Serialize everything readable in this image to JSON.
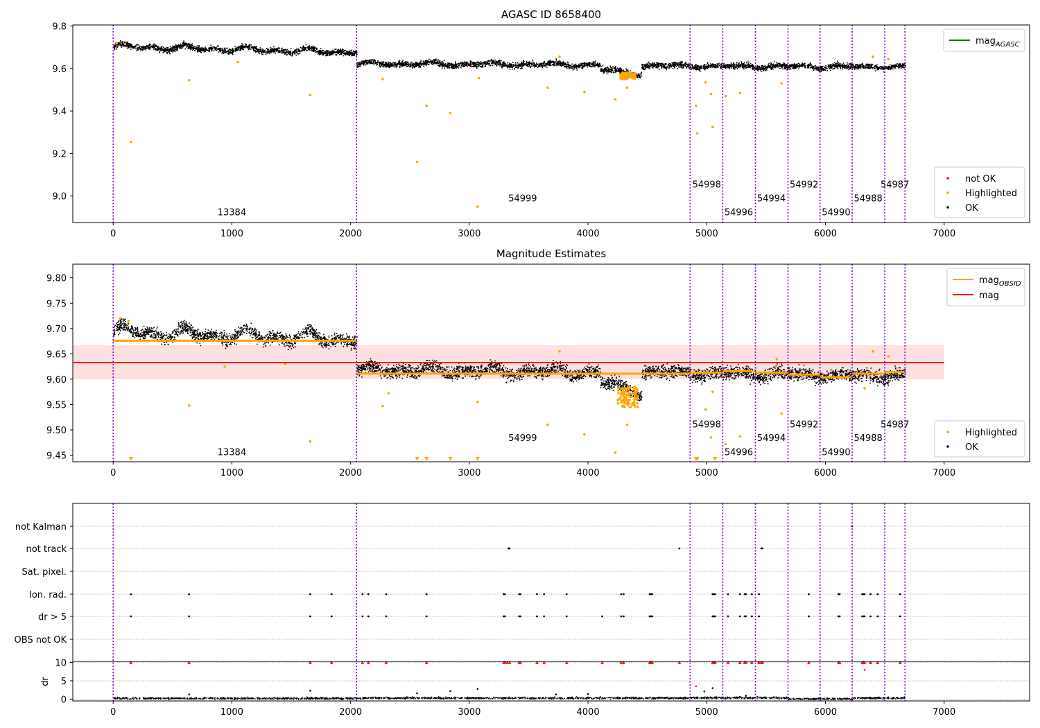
{
  "figure": {
    "background": "#ffffff"
  },
  "chart_data": [
    {
      "type": "scatter",
      "title": "AGASC ID 8658400",
      "xlabel": "",
      "ylabel": "",
      "xlim": [
        -340,
        7720
      ],
      "ylim": [
        8.875,
        9.805
      ],
      "xticks": [
        0,
        1000,
        2000,
        3000,
        4000,
        5000,
        6000,
        7000
      ],
      "yticks": [
        9.0,
        9.2,
        9.4,
        9.6,
        9.8
      ],
      "ytick_labels": [
        "9.0",
        "9.2",
        "9.4",
        "9.6",
        "9.8"
      ],
      "grid": false,
      "obs_boundaries": [
        0,
        2050,
        4860,
        5135,
        5410,
        5685,
        5955,
        6225,
        6500,
        6670
      ],
      "obsids": [
        {
          "label": "13384",
          "x": 1000,
          "y": 8.91
        },
        {
          "label": "54999",
          "x": 3450,
          "y": 8.975
        },
        {
          "label": "54998",
          "x": 5000,
          "y": 9.04
        },
        {
          "label": "54996",
          "x": 5270,
          "y": 8.91
        },
        {
          "label": "54994",
          "x": 5545,
          "y": 8.975
        },
        {
          "label": "54992",
          "x": 5820,
          "y": 9.04
        },
        {
          "label": "54990",
          "x": 6090,
          "y": 8.91
        },
        {
          "label": "54988",
          "x": 6360,
          "y": 8.975
        },
        {
          "label": "54987",
          "x": 6585,
          "y": 9.04
        }
      ],
      "ok_trend": [
        {
          "x": [
            0,
            2050
          ],
          "y": [
            9.705,
            9.68
          ],
          "wave": 0.015
        },
        {
          "x": [
            2050,
            4100
          ],
          "y": [
            9.625,
            9.62
          ],
          "wave": 0.01
        },
        {
          "x": [
            4100,
            4450
          ],
          "y": [
            9.6,
            9.575
          ],
          "wave": 0.01
        },
        {
          "x": [
            4450,
            6670
          ],
          "y": [
            9.615,
            9.61
          ],
          "wave": 0.008
        }
      ],
      "ok_scatter": 0.013,
      "highlighted": [
        [
          150,
          9.255
        ],
        [
          640,
          9.545
        ],
        [
          1660,
          9.475
        ],
        [
          2560,
          9.16
        ],
        [
          2640,
          9.425
        ],
        [
          2840,
          9.39
        ],
        [
          3070,
          8.95
        ],
        [
          3660,
          9.51
        ],
        [
          3970,
          9.49
        ],
        [
          4230,
          9.455
        ],
        [
          4330,
          9.51
        ],
        [
          4910,
          9.425
        ],
        [
          4920,
          9.295
        ],
        [
          5050,
          9.325
        ],
        [
          5160,
          9.47
        ],
        [
          5280,
          9.485
        ],
        [
          5035,
          9.48
        ],
        [
          4990,
          9.535
        ],
        [
          5630,
          9.53
        ],
        [
          6400,
          9.655
        ],
        [
          30,
          9.72
        ],
        [
          100,
          9.715
        ],
        [
          1050,
          9.63
        ],
        [
          2270,
          9.55
        ],
        [
          3080,
          9.555
        ],
        [
          3760,
          9.655
        ],
        [
          6530,
          9.645
        ]
      ],
      "highlight_cluster": {
        "x": [
          4270,
          4400
        ],
        "y": [
          9.55,
          9.58
        ]
      },
      "legend_top": [
        {
          "label": "mag",
          "sub": "AGASC",
          "color": "#008000"
        }
      ],
      "legend_bottom": [
        {
          "label": "not OK",
          "color": "#ff0000"
        },
        {
          "label": "Highlighted",
          "color": "#ffa500"
        },
        {
          "label": "OK",
          "color": "#000000"
        }
      ]
    },
    {
      "type": "scatter",
      "title": "Magnitude Estimates",
      "xlabel": "",
      "ylabel": "",
      "xlim": [
        -340,
        7720
      ],
      "ylim": [
        9.437,
        9.827
      ],
      "xticks": [
        0,
        1000,
        2000,
        3000,
        4000,
        5000,
        6000,
        7000
      ],
      "yticks": [
        9.45,
        9.5,
        9.55,
        9.6,
        9.65,
        9.7,
        9.75,
        9.8
      ],
      "ytick_labels": [
        "9.45",
        "9.50",
        "9.55",
        "9.60",
        "9.65",
        "9.70",
        "9.75",
        "9.80"
      ],
      "grid": false,
      "obs_boundaries": [
        0,
        2050,
        4860,
        5135,
        5410,
        5685,
        5955,
        6225,
        6500,
        6670
      ],
      "mag_mean": 9.633,
      "mag_band": [
        9.6,
        9.667
      ],
      "mag_band_x": [
        -340,
        7000
      ],
      "mag_obsid": [
        {
          "x": [
            0,
            2050
          ],
          "y": 9.676
        },
        {
          "x": [
            2050,
            4860
          ],
          "y": 9.611
        },
        {
          "x": [
            4860,
            5135
          ],
          "y": 9.613
        },
        {
          "x": [
            5135,
            5410
          ],
          "y": 9.616
        },
        {
          "x": [
            5410,
            5685
          ],
          "y": 9.613
        },
        {
          "x": [
            5685,
            5955
          ],
          "y": 9.609
        },
        {
          "x": [
            5955,
            6225
          ],
          "y": 9.604
        },
        {
          "x": [
            6225,
            6500
          ],
          "y": 9.611
        },
        {
          "x": [
            6500,
            6670
          ],
          "y": 9.614
        }
      ],
      "obsids": [
        {
          "label": "13384",
          "x": 1000,
          "y": 9.45
        },
        {
          "label": "54999",
          "x": 3450,
          "y": 9.478
        },
        {
          "label": "54998",
          "x": 5000,
          "y": 9.505
        },
        {
          "label": "54996",
          "x": 5270,
          "y": 9.45
        },
        {
          "label": "54994",
          "x": 5545,
          "y": 9.478
        },
        {
          "label": "54992",
          "x": 5820,
          "y": 9.505
        },
        {
          "label": "54990",
          "x": 6090,
          "y": 9.45
        },
        {
          "label": "54988",
          "x": 6360,
          "y": 9.478
        },
        {
          "label": "54987",
          "x": 6585,
          "y": 9.505
        }
      ],
      "ok_trend": [
        {
          "x": [
            0,
            2050
          ],
          "y": [
            9.695,
            9.68
          ],
          "wave": 0.014
        },
        {
          "x": [
            2050,
            4100
          ],
          "y": [
            9.62,
            9.615
          ],
          "wave": 0.009
        },
        {
          "x": [
            4100,
            4450
          ],
          "y": [
            9.595,
            9.575
          ],
          "wave": 0.008
        },
        {
          "x": [
            4450,
            6670
          ],
          "y": [
            9.615,
            9.607
          ],
          "wave": 0.007
        }
      ],
      "ok_scatter": 0.012,
      "highlighted": [
        [
          640,
          9.548
        ],
        [
          1660,
          9.477
        ],
        [
          3070,
          9.555
        ],
        [
          3660,
          9.51
        ],
        [
          3970,
          9.491
        ],
        [
          4230,
          9.455
        ],
        [
          4330,
          9.51
        ],
        [
          5035,
          9.485
        ],
        [
          4990,
          9.54
        ],
        [
          5050,
          9.575
        ],
        [
          5280,
          9.487
        ],
        [
          5160,
          9.472
        ],
        [
          5630,
          9.532
        ],
        [
          6400,
          9.655
        ],
        [
          6530,
          9.645
        ],
        [
          940,
          9.625
        ],
        [
          2270,
          9.547
        ],
        [
          2320,
          9.572
        ],
        [
          3760,
          9.655
        ],
        [
          60,
          9.72
        ],
        [
          130,
          9.715
        ],
        [
          1450,
          9.63
        ],
        [
          5590,
          9.64
        ],
        [
          6330,
          9.582
        ]
      ],
      "highlight_cluster": {
        "x": [
          4250,
          4420
        ],
        "y": [
          9.545,
          9.585
        ]
      },
      "low_markers": [
        150,
        2560,
        2640,
        2840,
        3070,
        4910,
        4920,
        5070
      ],
      "legend_top": [
        {
          "label": "mag",
          "sub": "OBSID",
          "color": "#ffa500"
        },
        {
          "label": "mag",
          "sub": "",
          "color": "#ff0000"
        }
      ],
      "legend_bottom": [
        {
          "label": "Highlighted",
          "color": "#ffa500"
        },
        {
          "label": "OK",
          "color": "#000000"
        }
      ]
    },
    {
      "type": "scatter",
      "title": "",
      "xlabel": "",
      "ylabel": "dr",
      "xlim": [
        -340,
        7720
      ],
      "xticks": [
        0,
        1000,
        2000,
        3000,
        4000,
        5000,
        6000,
        7000
      ],
      "flag_labels": [
        "not Kalman",
        "not track",
        "Sat. pixel.",
        "Ion. rad.",
        "dr > 5",
        "OBS not OK"
      ],
      "obs_boundaries": [
        0,
        2050,
        4860,
        5135,
        5410,
        5685,
        5955,
        6225,
        6500,
        6670
      ],
      "flags": {
        "not Kalman": [
          6225
        ],
        "not track": [
          3330,
          3340,
          4770,
          5460,
          5470
        ],
        "Sat. pixel.": [],
        "Ion. rad.": [
          150,
          640,
          1660,
          1840,
          2100,
          2150,
          2300,
          2640,
          3290,
          3300,
          3420,
          3430,
          3570,
          3630,
          3820,
          4280,
          4300,
          4520,
          4530,
          4540,
          5050,
          5060,
          5070,
          5180,
          5280,
          5320,
          5330,
          5380,
          5440,
          5860,
          6110,
          6120,
          6310,
          6320,
          6330,
          6380,
          6440,
          6630
        ],
        "dr > 5": [
          150,
          640,
          1660,
          1840,
          2100,
          2150,
          2300,
          2640,
          3290,
          3300,
          3420,
          3430,
          3570,
          3630,
          3820,
          4120,
          4280,
          4300,
          4520,
          4530,
          4540,
          5050,
          5060,
          5070,
          5180,
          5280,
          5320,
          5330,
          5380,
          5440,
          5860,
          6110,
          6120,
          6310,
          6320,
          6330,
          6380,
          6440,
          6630
        ],
        "OBS not OK": []
      },
      "dr_ylim": [
        -0.5,
        10.3
      ],
      "dr_yticks": [
        0,
        5,
        10
      ],
      "dr_levels": [
        {
          "x": [
            0,
            2050
          ],
          "y": 0.35
        },
        {
          "x": [
            2050,
            4860
          ],
          "y": 0.45
        },
        {
          "x": [
            4860,
            5685
          ],
          "y": 0.5
        },
        {
          "x": [
            5685,
            6225
          ],
          "y": 0.2
        },
        {
          "x": [
            6225,
            6670
          ],
          "y": 0.45
        }
      ],
      "dr_capped": [
        150,
        640,
        1660,
        1840,
        2100,
        2150,
        2300,
        2640,
        3290,
        3300,
        3320,
        3340,
        3420,
        3430,
        3570,
        3630,
        3820,
        4120,
        4280,
        4300,
        4520,
        4530,
        4540,
        4770,
        5050,
        5060,
        5070,
        5180,
        5280,
        5320,
        5330,
        5380,
        5440,
        5460,
        5470,
        5860,
        6110,
        6120,
        6310,
        6320,
        6330,
        6380,
        6440,
        6630
      ],
      "dr_high": [
        [
          1660,
          2.3
        ],
        [
          640,
          1.3
        ],
        [
          2560,
          1.6
        ],
        [
          2840,
          2.2
        ],
        [
          3070,
          2.8
        ],
        [
          4910,
          3.5
        ],
        [
          5050,
          3.0
        ],
        [
          4980,
          2.1
        ],
        [
          6330,
          8.0
        ],
        [
          3730,
          1.3
        ],
        [
          4000,
          1.4
        ],
        [
          5330,
          0.9
        ]
      ]
    }
  ]
}
